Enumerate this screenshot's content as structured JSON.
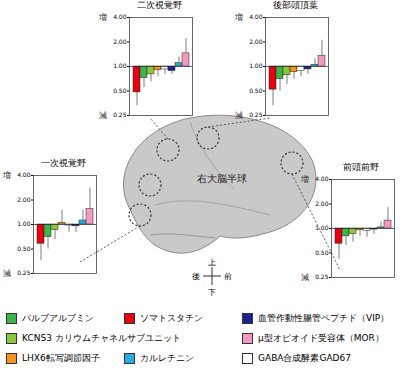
{
  "chart_data": [
    {
      "type": "bar",
      "title": "二次視覚野",
      "categories": [
        "ソマトスタチン",
        "パルブアルブミン",
        "KCNS3 カリウムチャネルサブユニット",
        "LHX6転写調節因子",
        "GABA合成酵素GAD67",
        "血管作動性腸管ペプチド（VIP）",
        "カルレチニン",
        "μ型オピオイド受容体（MOR）"
      ],
      "values": [
        0.48,
        0.72,
        0.8,
        0.9,
        0.92,
        0.88,
        1.1,
        1.45
      ],
      "errors": [
        0.33,
        0.55,
        0.65,
        0.75,
        0.8,
        0.8,
        1.3,
        2.2
      ],
      "baseline": 1,
      "colors": [
        "#e60012",
        "#39b54a",
        "#8cc63f",
        "#f7941d",
        "#ffffff",
        "#1d2088",
        "#29abe2",
        "#f49ac1"
      ],
      "log": "y",
      "ylim": [
        0.25,
        4
      ],
      "yticks": [
        0.25,
        {
          "value": 0.5,
          "label": "0.50"
        },
        {
          "value": 1,
          "label": "1.00"
        },
        {
          "value": 2,
          "label": "2.00"
        },
        {
          "value": 4,
          "label": "4.00"
        }
      ],
      "tick_labels": "y",
      "annotations": [
        {
          "label": "増",
          "value": 4
        },
        {
          "label": "減",
          "value": 0.25
        }
      ],
      "legend": "bottom"
    },
    {
      "type": "bar",
      "title": "後部頭頂葉",
      "categories": [
        "ソマトスタチン",
        "パルブアルブミン",
        "KCNS3 カリウムチャネルサブユニット",
        "LHX6転写調節因子",
        "GABA合成酵素GAD67",
        "血管作動性腸管ペプチド（VIP）",
        "カルレチニン",
        "μ型オピオイド受容体（MOR）"
      ],
      "values": [
        0.52,
        0.7,
        0.78,
        0.85,
        0.88,
        0.92,
        1.05,
        1.35
      ],
      "errors": [
        0.33,
        0.5,
        0.6,
        0.7,
        0.75,
        0.8,
        1.25,
        2.1
      ],
      "baseline": 1,
      "colors": [
        "#e60012",
        "#39b54a",
        "#8cc63f",
        "#f7941d",
        "#ffffff",
        "#1d2088",
        "#29abe2",
        "#f49ac1"
      ],
      "log": "y",
      "ylim": [
        0.25,
        4
      ],
      "yticks": [
        0.25,
        {
          "value": 0.5,
          "label": "0.50"
        },
        {
          "value": 1,
          "label": "1.00"
        },
        {
          "value": 2,
          "label": "2.00"
        },
        {
          "value": 4,
          "label": "4.00"
        }
      ],
      "tick_labels": "y",
      "annotations": [
        {
          "label": "増",
          "value": 4
        },
        {
          "label": "減",
          "value": 0.25
        }
      ]
    },
    {
      "type": "bar",
      "title": "一次視覚野",
      "categories": [
        "ソマトスタチン",
        "パルブアルブミン",
        "KCNS3 カリウムチャネルサブユニット",
        "LHX6転写調節因子",
        "GABA合成酵素GAD67",
        "血管作動性腸管ペプチド（VIP）",
        "カルレチニン",
        "μ型オピオイド受容体（MOR）"
      ],
      "values": [
        0.58,
        0.7,
        0.85,
        1.05,
        0.97,
        0.95,
        1.12,
        1.55
      ],
      "errors": [
        0.36,
        0.5,
        0.65,
        1.5,
        0.8,
        0.8,
        1.5,
        2.8
      ],
      "baseline": 1,
      "colors": [
        "#e60012",
        "#39b54a",
        "#8cc63f",
        "#f7941d",
        "#ffffff",
        "#1d2088",
        "#29abe2",
        "#f49ac1"
      ],
      "log": "y",
      "ylim": [
        0.25,
        4
      ],
      "yticks": [
        0.25,
        {
          "value": 0.5,
          "label": "0.50"
        },
        {
          "value": 1,
          "label": "1.00"
        },
        {
          "value": 2,
          "label": "2.00"
        },
        {
          "value": 4,
          "label": "4.00"
        }
      ],
      "tick_labels": "y",
      "annotations": [
        {
          "label": "増",
          "value": 4
        },
        {
          "label": "減",
          "value": 0.25
        }
      ]
    },
    {
      "type": "bar",
      "title": "前頭前野",
      "categories": [
        "ソマトスタチン",
        "パルブアルブミン",
        "KCNS3 カリウムチャネルサブユニット",
        "LHX6転写調節因子",
        "GABA合成酵素GAD67",
        "血管作動性腸管ペプチド（VIP）",
        "カルレチニン",
        "μ型オピオイド受容体（MOR）"
      ],
      "values": [
        0.65,
        0.8,
        0.85,
        0.95,
        0.93,
        0.97,
        1.03,
        1.25
      ],
      "errors": [
        0.42,
        0.62,
        0.68,
        0.8,
        0.78,
        0.85,
        1.2,
        1.8
      ],
      "baseline": 1,
      "colors": [
        "#e60012",
        "#39b54a",
        "#8cc63f",
        "#f7941d",
        "#ffffff",
        "#1d2088",
        "#29abe2",
        "#f49ac1"
      ],
      "log": "y",
      "ylim": [
        0.25,
        4
      ],
      "yticks": [
        0.25,
        {
          "value": 0.5,
          "label": "0.50"
        },
        {
          "value": 1,
          "label": "1.00"
        },
        {
          "value": 2,
          "label": "2.00"
        },
        {
          "value": 4,
          "label": "4.00"
        }
      ],
      "tick_labels": "y",
      "annotations": [
        {
          "label": "増",
          "value": 4
        },
        {
          "label": "減",
          "value": 0.25
        }
      ]
    }
  ],
  "diagram": {
    "brain_label": "右大脳半球",
    "compass": {
      "up": "上",
      "down": "下",
      "back": "後",
      "front": "前"
    }
  }
}
